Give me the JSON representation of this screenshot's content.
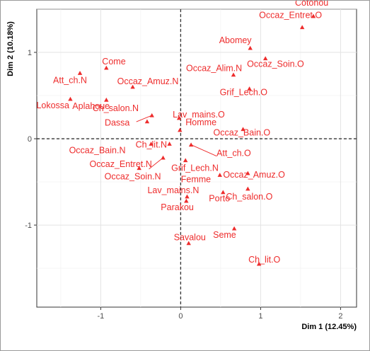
{
  "chart_data": {
    "type": "scatter",
    "title": "",
    "xlabel": "Dim 1 (12.45%)",
    "ylabel": "Dim 2 (10.18%)",
    "xlim": [
      -1.8,
      2.2
    ],
    "ylim": [
      -1.95,
      1.5
    ],
    "x_ticks": [
      -1,
      0,
      1,
      2
    ],
    "y_ticks": [
      -1,
      0,
      1
    ],
    "grid": true,
    "reference_lines": {
      "x": 0,
      "y": 0,
      "style": "dashed"
    },
    "marker_color": "#ee2c2c",
    "points": [
      {
        "label": "Cotonou",
        "x": 1.66,
        "y": 1.42
      },
      {
        "label": "Occaz_Entret.O",
        "x": 1.52,
        "y": 1.29
      },
      {
        "label": "Abomey",
        "x": 0.87,
        "y": 1.05
      },
      {
        "label": "Occaz_Soin.O",
        "x": 1.06,
        "y": 0.93
      },
      {
        "label": "Occaz_Alim.N",
        "x": 0.66,
        "y": 0.74
      },
      {
        "label": "Grif_Lech.O",
        "x": 0.86,
        "y": 0.58
      },
      {
        "label": "Att_ch.N",
        "x": -1.26,
        "y": 0.76
      },
      {
        "label": "Come",
        "x": -0.93,
        "y": 0.82
      },
      {
        "label": "Occaz_Amuz.N",
        "x": -0.6,
        "y": 0.6
      },
      {
        "label": "Lokossa",
        "x": -1.38,
        "y": 0.46
      },
      {
        "label": "Aplahoue",
        "x": -0.93,
        "y": 0.45
      },
      {
        "label": "Ch_salon.N",
        "x": -0.36,
        "y": 0.27
      },
      {
        "label": "Lav_mains.O",
        "x": -0.02,
        "y": 0.24
      },
      {
        "label": "Dassa",
        "x": -0.42,
        "y": 0.2
      },
      {
        "label": "Homme",
        "x": -0.01,
        "y": 0.1
      },
      {
        "label": "Occaz_Bain.O",
        "x": 0.78,
        "y": 0.11
      },
      {
        "label": "Ch_lit.N",
        "x": -0.14,
        "y": -0.06
      },
      {
        "label": "Occaz_Bain.N",
        "x": -0.37,
        "y": -0.06
      },
      {
        "label": "Att_ch.O",
        "x": 0.13,
        "y": -0.07
      },
      {
        "label": "Grif_Lech.N",
        "x": 0.06,
        "y": -0.25
      },
      {
        "label": "Occaz_Entret.N",
        "x": -0.22,
        "y": -0.22
      },
      {
        "label": "Occaz_Soin.N",
        "x": -0.52,
        "y": -0.34
      },
      {
        "label": "Femme",
        "x": 0.49,
        "y": -0.42
      },
      {
        "label": "Occaz_Amuz.O",
        "x": 0.84,
        "y": -0.4
      },
      {
        "label": "Lav_mains.N",
        "x": 0.08,
        "y": -0.67
      },
      {
        "label": "Porto",
        "x": 0.53,
        "y": -0.62
      },
      {
        "label": "Ch_salon.O",
        "x": 0.84,
        "y": -0.58
      },
      {
        "label": "Parakou",
        "x": 0.07,
        "y": -0.72
      },
      {
        "label": "Seme",
        "x": 0.67,
        "y": -1.04
      },
      {
        "label": "Savalou",
        "x": 0.1,
        "y": -1.21
      },
      {
        "label": "Ch_lit.O",
        "x": 0.98,
        "y": -1.45
      }
    ]
  }
}
